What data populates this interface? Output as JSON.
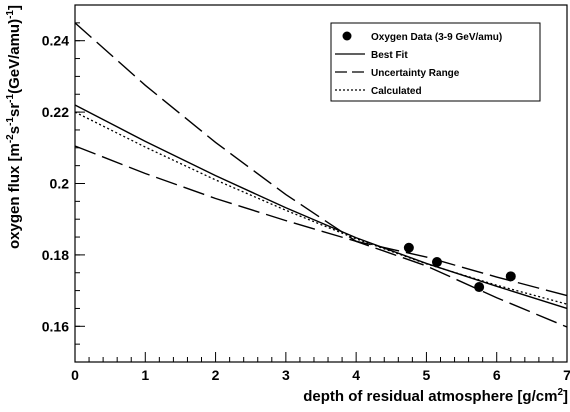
{
  "chart_data": {
    "type": "line",
    "xlabel_main": "depth of residual atmosphere [g/cm",
    "xlabel_sup": "2",
    "xlabel_end": "]",
    "ylabel_parts": [
      {
        "t": "oxygen flux [m",
        "sup": false
      },
      {
        "t": "-2",
        "sup": true
      },
      {
        "t": "s",
        "sup": false
      },
      {
        "t": "-1",
        "sup": true
      },
      {
        "t": "sr",
        "sup": false
      },
      {
        "t": "-1",
        "sup": true
      },
      {
        "t": "(GeV/amu)",
        "sup": false
      },
      {
        "t": "-1",
        "sup": true
      },
      {
        "t": "]",
        "sup": false
      }
    ],
    "xlim": [
      0,
      7
    ],
    "ylim": [
      0.15,
      0.25
    ],
    "x_ticks": [
      0,
      1,
      2,
      3,
      4,
      5,
      6,
      7
    ],
    "x_tick_labels": [
      "0",
      "1",
      "2",
      "3",
      "4",
      "5",
      "6",
      "7"
    ],
    "y_ticks": [
      0.16,
      0.18,
      0.2,
      0.22,
      0.24
    ],
    "y_tick_labels": [
      "0.16",
      "0.18",
      "0.2",
      "0.22",
      "0.24"
    ],
    "grid": false,
    "legend_position": "top-right",
    "legend": [
      {
        "label": "Oxygen Data (3-9 GeV/amu)",
        "style": "marker"
      },
      {
        "label": "Best Fit",
        "style": "solid"
      },
      {
        "label": "Uncertainty Range",
        "style": "longdash"
      },
      {
        "label": "Calculated",
        "style": "dotted"
      }
    ],
    "points": [
      {
        "x": 4.75,
        "y": 0.182
      },
      {
        "x": 5.15,
        "y": 0.178
      },
      {
        "x": 5.75,
        "y": 0.171
      },
      {
        "x": 6.2,
        "y": 0.174
      }
    ],
    "series": [
      {
        "name": "Best Fit",
        "style": "solid",
        "x": [
          0,
          1,
          2,
          3,
          4,
          5,
          6,
          7
        ],
        "y": [
          0.222,
          0.2118,
          0.2022,
          0.1932,
          0.1848,
          0.1776,
          0.1712,
          0.165
        ]
      },
      {
        "name": "Uncertainty Range",
        "style": "longdash",
        "x": [
          0,
          1,
          2,
          3,
          4,
          5,
          6,
          7
        ],
        "y": [
          0.245,
          0.2275,
          0.2115,
          0.1969,
          0.1838,
          0.1769,
          0.168,
          0.1598
        ]
      },
      {
        "name": "Uncertainty Range",
        "style": "longdash",
        "x": [
          0,
          1,
          2,
          3,
          4,
          5,
          6,
          7
        ],
        "y": [
          0.2105,
          0.2028,
          0.1958,
          0.1896,
          0.1838,
          0.1794,
          0.1738,
          0.1686
        ]
      },
      {
        "name": "Calculated",
        "style": "dotted",
        "x": [
          0,
          1,
          2,
          3,
          4,
          5,
          6,
          7
        ],
        "y": [
          0.22,
          0.2102,
          0.201,
          0.1925,
          0.1845,
          0.1775,
          0.1715,
          0.1662
        ]
      }
    ]
  }
}
